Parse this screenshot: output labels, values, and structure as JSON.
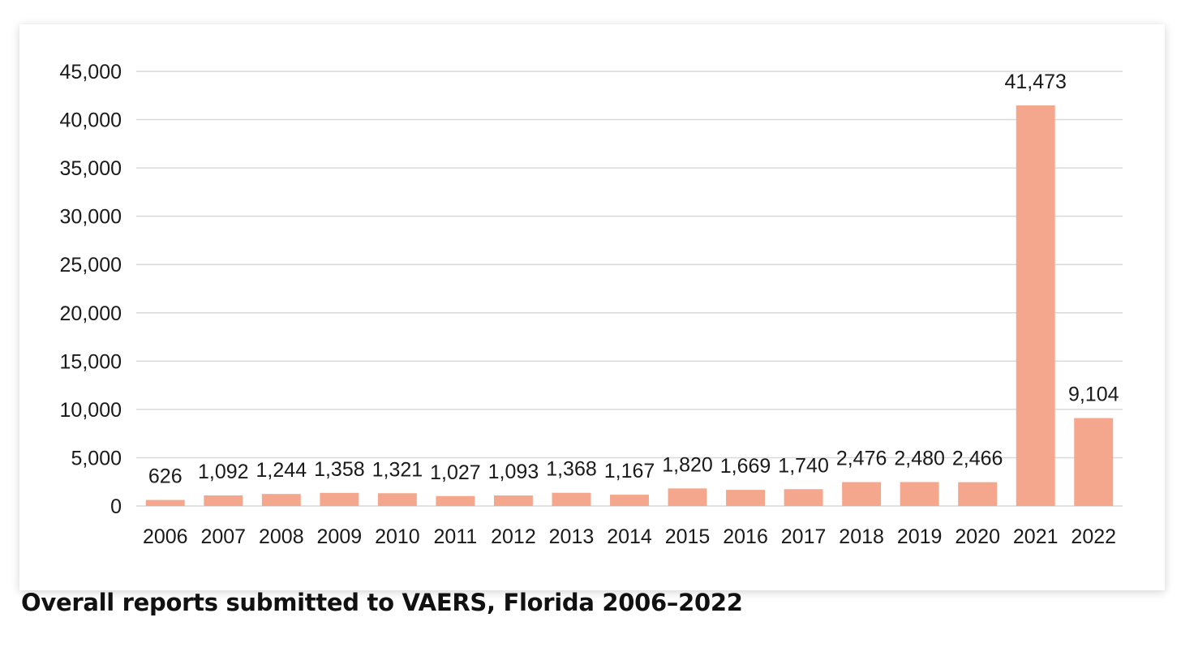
{
  "caption": "Overall reports submitted to VAERS, Florida 2006–2022",
  "chart_data": {
    "type": "bar",
    "title": "",
    "xlabel": "",
    "ylabel": "",
    "categories": [
      "2006",
      "2007",
      "2008",
      "2009",
      "2010",
      "2011",
      "2012",
      "2013",
      "2014",
      "2015",
      "2016",
      "2017",
      "2018",
      "2019",
      "2020",
      "2021",
      "2022"
    ],
    "values": [
      626,
      1092,
      1244,
      1358,
      1321,
      1027,
      1093,
      1368,
      1167,
      1820,
      1669,
      1740,
      2476,
      2480,
      2466,
      41473,
      9104
    ],
    "data_labels": [
      "626",
      "1,092",
      "1,244",
      "1,358",
      "1,321",
      "1,027",
      "1,093",
      "1,368",
      "1,167",
      "1,820",
      "1,669",
      "1,740",
      "2,476",
      "2,480",
      "2,466",
      "41,473",
      "9,104"
    ],
    "ylim": [
      0,
      45000
    ],
    "yticks": [
      0,
      5000,
      10000,
      15000,
      20000,
      25000,
      30000,
      35000,
      40000,
      45000
    ],
    "ytick_labels": [
      "0",
      "5,000",
      "10,000",
      "15,000",
      "20,000",
      "25,000",
      "30,000",
      "35,000",
      "40,000",
      "45,000"
    ],
    "grid": true,
    "legend": "none",
    "bar_color": "#f4a78c",
    "grid_color": "#d9d9d9"
  }
}
